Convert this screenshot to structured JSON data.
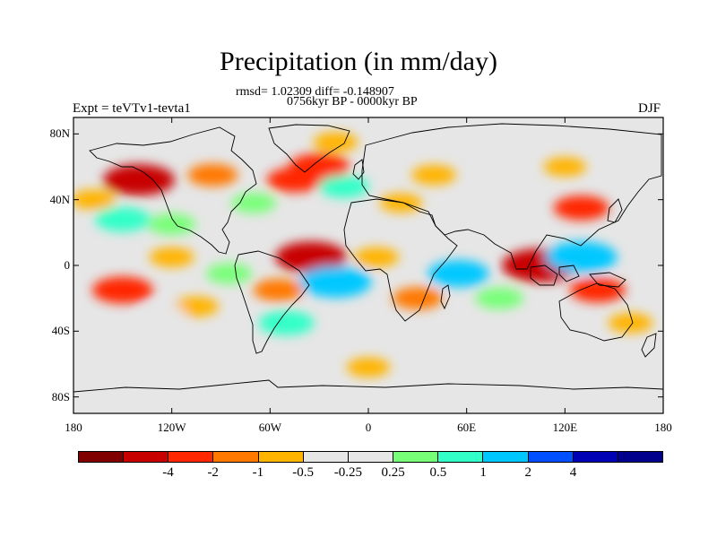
{
  "title": "Precipitation (in mm/day)",
  "stats_line": "rmsd= 1.02309 diff= -0.148907",
  "period_line": "0756kyr BP - 0000kyr BP",
  "experiment_label": "Expt = teVTv1-tevta1",
  "season_label": "DJF",
  "lat_labels": [
    "80N",
    "40N",
    "0",
    "40S",
    "80S"
  ],
  "lon_labels": [
    "180",
    "120W",
    "60W",
    "0",
    "60E",
    "120E",
    "180"
  ],
  "colorbar": {
    "colors": [
      "#800000",
      "#c80000",
      "#ff2800",
      "#ff7800",
      "#ffb400",
      "#e6e6e6",
      "#e6e6e6",
      "#78ff78",
      "#32ffc8",
      "#00c8ff",
      "#0050ff",
      "#0000b4",
      "#00008c"
    ],
    "labels": [
      "-4",
      "-2",
      "-1",
      "-0.5",
      "-0.25",
      "0.25",
      "0.5",
      "1",
      "2",
      "4"
    ],
    "units": "mm/day"
  },
  "anomaly_regions": [
    {
      "name": "north-pacific-dry",
      "lat": 52,
      "lon": -140,
      "value": -3
    },
    {
      "name": "north-pacific-dry-2",
      "lat": 40,
      "lon": -168,
      "value": -0.5
    },
    {
      "name": "north-pacific-wet",
      "lat": 28,
      "lon": -150,
      "value": 1.5
    },
    {
      "name": "north-pacific-wet-2",
      "lat": 25,
      "lon": -120,
      "value": 0.8
    },
    {
      "name": "north-america-dry",
      "lat": 55,
      "lon": -95,
      "value": -1
    },
    {
      "name": "north-atlantic-dry",
      "lat": 52,
      "lon": -45,
      "value": -1.5
    },
    {
      "name": "north-atlantic-dry-2",
      "lat": 60,
      "lon": -30,
      "value": -2
    },
    {
      "name": "north-atlantic-wet",
      "lat": 48,
      "lon": -15,
      "value": 1
    },
    {
      "name": "gulf-stream-wet",
      "lat": 38,
      "lon": -70,
      "value": 0.5
    },
    {
      "name": "arctic-dry",
      "lat": 75,
      "lon": -20,
      "value": -0.5
    },
    {
      "name": "eurasia-dry",
      "lat": 55,
      "lon": 40,
      "value": -0.5
    },
    {
      "name": "mediterranean-dry",
      "lat": 38,
      "lon": 20,
      "value": -0.3
    },
    {
      "name": "equatorial-atlantic-dry",
      "lat": 5,
      "lon": -35,
      "value": -3
    },
    {
      "name": "equatorial-pacific-dry",
      "lat": 5,
      "lon": -120,
      "value": -0.5
    },
    {
      "name": "south-atlantic-wet",
      "lat": -10,
      "lon": -20,
      "value": 3
    },
    {
      "name": "brazil-dry",
      "lat": -15,
      "lon": -55,
      "value": -1
    },
    {
      "name": "south-pacific-dry",
      "lat": -15,
      "lon": -150,
      "value": -2
    },
    {
      "name": "south-pacific-dry-2",
      "lat": -25,
      "lon": -105,
      "value": -0.5
    },
    {
      "name": "south-pacific-wet",
      "lat": -30,
      "lon": -125,
      "value": 0.4
    },
    {
      "name": "indian-ocean-wet",
      "lat": -5,
      "lon": 55,
      "value": 2
    },
    {
      "name": "indian-ocean-south-wet",
      "lat": -20,
      "lon": 80,
      "value": 0.8
    },
    {
      "name": "madagascar-dry",
      "lat": -20,
      "lon": 30,
      "value": -1
    },
    {
      "name": "maritime-continent-dry",
      "lat": 0,
      "lon": 105,
      "value": -3.5
    },
    {
      "name": "west-pacific-wet",
      "lat": 5,
      "lon": 130,
      "value": 3
    },
    {
      "name": "west-pacific-dry",
      "lat": 35,
      "lon": 130,
      "value": -1.5
    },
    {
      "name": "australia-dry",
      "lat": -15,
      "lon": 140,
      "value": -1.5
    },
    {
      "name": "tasman-dry",
      "lat": -35,
      "lon": 160,
      "value": -0.5
    },
    {
      "name": "southern-ocean-dry",
      "lat": -62,
      "lon": 0,
      "value": -0.4
    },
    {
      "name": "siberia-dry",
      "lat": 60,
      "lon": 120,
      "value": -0.3
    },
    {
      "name": "west-africa-dry",
      "lat": 5,
      "lon": 5,
      "value": -0.5
    },
    {
      "name": "east-pacific-wet",
      "lat": -5,
      "lon": -85,
      "value": 0.6
    },
    {
      "name": "south-america-wet",
      "lat": -35,
      "lon": -50,
      "value": 1.5
    }
  ]
}
